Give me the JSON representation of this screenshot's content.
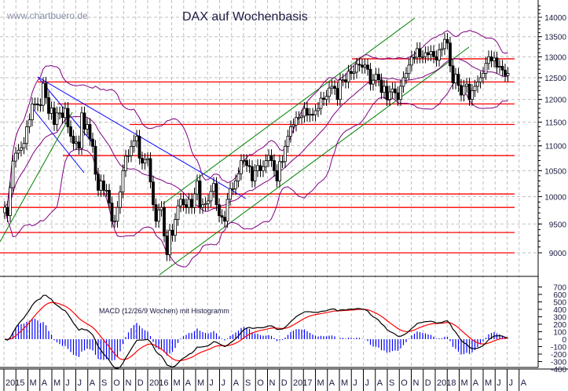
{
  "chart_data": {
    "type": "candlestick",
    "title": "DAX auf Wochenbasis",
    "watermark": "www.chartbuero.de",
    "y_scale": "log",
    "ylim": [
      8700,
      14300
    ],
    "y_ticks": [
      "14000",
      "13500",
      "13000",
      "12500",
      "12000",
      "11500",
      "11000",
      "10500",
      "10000",
      "9500",
      "9000"
    ],
    "y_tick_values": [
      14000,
      13500,
      13000,
      12500,
      12000,
      11500,
      11000,
      10500,
      10000,
      9500,
      9000
    ],
    "grid": true,
    "x_labels": [
      "2015",
      "",
      "M",
      "A",
      "M",
      "J",
      "J",
      "A",
      "S",
      "O",
      "N",
      "D",
      "2016",
      "",
      "M",
      "A",
      "M",
      "J",
      "J",
      "A",
      "S",
      "O",
      "N",
      "D",
      "2017",
      "",
      "M",
      "A",
      "M",
      "J",
      "J",
      "A",
      "S",
      "O",
      "N",
      "D",
      "2018",
      "",
      "M",
      "A",
      "M",
      "J",
      "J",
      "A"
    ],
    "weekly_closes": [
      9800,
      9650,
      10170,
      10690,
      10850,
      10910,
      10960,
      11050,
      11400,
      11550,
      11900,
      11900,
      11880,
      11870,
      12370,
      12040,
      11690,
      11810,
      11450,
      11700,
      11700,
      11600,
      11800,
      11400,
      11200,
      11050,
      11080,
      10950,
      11700,
      11350,
      11450,
      11140,
      10990,
      10430,
      10120,
      10300,
      10120,
      10120,
      9880,
      9550,
      9550,
      9800,
      10090,
      10500,
      10790,
      10800,
      10990,
      11100,
      11200,
      10750,
      10650,
      10720,
      10740,
      10280,
      9850,
      9550,
      9750,
      9800,
      9290,
      8970,
      9390,
      9300,
      9580,
      9830,
      9950,
      9850,
      9800,
      9950,
      9800,
      10050,
      10300,
      9800,
      9850,
      9870,
      9920,
      10100,
      10250,
      9850,
      9650,
      9620,
      9550,
      9950,
      10150,
      10150,
      10300,
      10440,
      10700,
      10700,
      10600,
      10580,
      10300,
      10500,
      10600,
      10500,
      10580,
      10700,
      10800,
      10700,
      10500,
      10300,
      10680,
      10680,
      10990,
      11200,
      11400,
      11440,
      11600,
      11600,
      11630,
      11800,
      11650,
      11670,
      11660,
      11750,
      11800,
      12030,
      12000,
      12070,
      12260,
      12300,
      12250,
      12000,
      12450,
      12450,
      12400,
      12650,
      12600,
      12630,
      12820,
      12800,
      12750,
      12800,
      12700,
      12350,
      12440,
      12580,
      12450,
      12160,
      12300,
      12000,
      12170,
      12240,
      12150,
      12000,
      12300,
      12500,
      12600,
      12800,
      12990,
      12990,
      13200,
      13000,
      13000,
      13100,
      13050,
      13130,
      13000,
      12920,
      13170,
      13200,
      13430,
      13340,
      12780,
      12380,
      12580,
      12320,
      12100,
      12300,
      12350,
      12000,
      12200,
      12300,
      12400,
      12500,
      12600,
      12840,
      13000,
      12900,
      12970,
      12750,
      12770,
      12680,
      12550,
      12600
    ],
    "horizontal_levels": [
      12950,
      12400,
      11900,
      11450,
      10800,
      10050,
      9800,
      9350,
      9000
    ],
    "indicators": {
      "bollinger": {
        "period": 20,
        "stddev": 2
      },
      "macd": {
        "label": "MACD (12/26/9 Wochen) mit Histogramm",
        "fast": 12,
        "slow": 26,
        "signal": 9,
        "ylim": [
          -450,
          750
        ],
        "y_ticks": [
          "700",
          "600",
          "500",
          "400",
          "300",
          "200",
          "100",
          "0",
          "-100",
          "-200",
          "-300",
          "-400"
        ],
        "y_tick_values": [
          700,
          600,
          500,
          400,
          300,
          200,
          100,
          0,
          -100,
          -200,
          -300,
          -400
        ]
      }
    },
    "colors": {
      "candle_up": "#ffffff",
      "candle_down": "#000000",
      "bollinger": "#800080",
      "level": "#ff0000",
      "trend_down": "#0000ff",
      "trend_up": "#008000",
      "macd": "#000000",
      "signal": "#ff0000",
      "histogram": "#0000ff",
      "grid": "#c0c0c0"
    }
  }
}
